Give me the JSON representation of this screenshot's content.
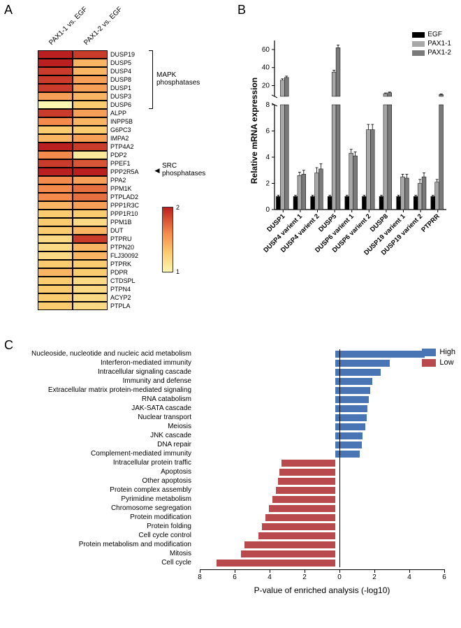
{
  "panelA": {
    "label": "A",
    "headers": [
      "PAX1-1 vs. EGF",
      "PAX1-2 vs. EGF"
    ],
    "genes": [
      "DUSP19",
      "DUSP5",
      "DUSP4",
      "DUSP8",
      "DUSP1",
      "DUSP3",
      "DUSP6",
      "ALPP",
      "INPP5B",
      "G6PC3",
      "IMPA2",
      "PTP4A2",
      "PDP2",
      "PPEF1",
      "PPP2R5A",
      "PPA2",
      "PPM1K",
      "PTPLAD2",
      "PPP1R3C",
      "PPP1R10",
      "PPM1B",
      "DUT",
      "PTPRU",
      "PTPN20",
      "FLJ30092",
      "PTPRK",
      "PDPR",
      "CTDSPL",
      "PTPN4",
      "ACYP2",
      "PTPLA"
    ],
    "values": [
      [
        2.0,
        1.9
      ],
      [
        2.0,
        1.4
      ],
      [
        1.9,
        1.4
      ],
      [
        1.9,
        1.5
      ],
      [
        1.9,
        1.5
      ],
      [
        1.5,
        1.4
      ],
      [
        1.0,
        1.3
      ],
      [
        1.9,
        1.5
      ],
      [
        1.6,
        1.4
      ],
      [
        1.3,
        1.3
      ],
      [
        1.4,
        1.5
      ],
      [
        2.0,
        1.9
      ],
      [
        1.6,
        1.1
      ],
      [
        1.9,
        1.8
      ],
      [
        2.0,
        2.0
      ],
      [
        1.6,
        1.5
      ],
      [
        1.6,
        1.7
      ],
      [
        1.6,
        1.7
      ],
      [
        1.4,
        1.5
      ],
      [
        1.3,
        1.3
      ],
      [
        1.3,
        1.2
      ],
      [
        1.3,
        1.4
      ],
      [
        1.2,
        1.9
      ],
      [
        1.2,
        1.4
      ],
      [
        1.2,
        1.4
      ],
      [
        1.3,
        1.3
      ],
      [
        1.4,
        1.3
      ],
      [
        1.3,
        1.2
      ],
      [
        1.3,
        1.2
      ],
      [
        1.3,
        1.2
      ],
      [
        1.3,
        1.2
      ]
    ],
    "bracket_mapk": {
      "start": 0,
      "end": 6,
      "label": "MAPK\nphosphatases"
    },
    "arrow_src": {
      "row": 14,
      "label": "SRC\nphosphatases"
    },
    "colorbar": {
      "min": 1.0,
      "max": 2.0,
      "stops": [
        {
          "v": 1.0,
          "c": "#fcf5b0"
        },
        {
          "v": 1.3,
          "c": "#fbcb6f"
        },
        {
          "v": 1.6,
          "c": "#f48a4b"
        },
        {
          "v": 2.0,
          "c": "#bb2020"
        }
      ]
    }
  },
  "panelB": {
    "label": "B",
    "ylabel": "Relative mRNA expression",
    "series": [
      {
        "name": "EGF",
        "color": "#000000"
      },
      {
        "name": "PAX1-1",
        "color": "#a7a7a7"
      },
      {
        "name": "PAX1-2",
        "color": "#7a7a7a"
      }
    ],
    "categories": [
      "DUSP1",
      "DUSP4 varient 1",
      "DUSP4 varient 2",
      "DUSP5",
      "DUSP6 varient 1",
      "DUSP6 varient 2",
      "DUSP8",
      "DUSP19 varient 1",
      "DUSP19 varient 2",
      "PTPRR"
    ],
    "yaxis_lower": {
      "min": 0,
      "max": 8,
      "ticks": [
        0,
        2,
        4,
        6,
        8
      ]
    },
    "yaxis_upper": {
      "min": 8,
      "max": 70,
      "ticks": [
        20,
        40,
        60
      ]
    },
    "data": {
      "EGF": [
        1,
        1,
        1,
        1,
        1,
        1,
        1,
        1,
        1,
        1
      ],
      "PAX1-1": [
        26,
        2.6,
        2.8,
        35,
        4.3,
        6.1,
        11,
        2.5,
        2.0,
        2.1
      ],
      "PAX1-2": [
        29,
        2.7,
        3.1,
        62,
        4.1,
        6.1,
        12,
        2.4,
        2.5,
        10
      ]
    },
    "err": {
      "EGF": [
        0.1,
        0.1,
        0.1,
        0.1,
        0.1,
        0.1,
        0.1,
        0.1,
        0.1,
        0.1
      ],
      "PAX1-1": [
        1.5,
        0.25,
        0.4,
        2,
        0.3,
        0.4,
        0.8,
        0.2,
        0.3,
        0.2
      ],
      "PAX1-2": [
        1.5,
        0.3,
        0.4,
        3,
        0.3,
        0.4,
        0.8,
        0.3,
        0.3,
        0.8
      ]
    }
  },
  "panelC": {
    "label": "C",
    "xlabel": "P-value of enriched analysis (-log10)",
    "xlim": [
      -8,
      6
    ],
    "xticks": [
      8,
      6,
      4,
      2,
      0,
      2,
      4,
      6
    ],
    "series": [
      {
        "name": "High",
        "color": "#4a75b5"
      },
      {
        "name": "Low",
        "color": "#b84a4d"
      }
    ],
    "rows": [
      {
        "label": "Nucleoside, nucleotide and nucleic acid metabolism",
        "high": 5.1,
        "low": 0
      },
      {
        "label": "Interferon-mediated immunity",
        "high": 3.1,
        "low": 0
      },
      {
        "label": "Intracellular signaling cascade",
        "high": 2.6,
        "low": 0
      },
      {
        "label": "Immunity and defense",
        "high": 2.1,
        "low": 0
      },
      {
        "label": "Extracellular matrix protein-mediated signaling",
        "high": 2.0,
        "low": 0
      },
      {
        "label": "RNA catabolism",
        "high": 1.9,
        "low": 0
      },
      {
        "label": "JAK-SATA cascade",
        "high": 1.85,
        "low": 0
      },
      {
        "label": "Nuclear transport",
        "high": 1.8,
        "low": 0
      },
      {
        "label": "Meiosis",
        "high": 1.7,
        "low": 0
      },
      {
        "label": "JNK cascade",
        "high": 1.55,
        "low": 0
      },
      {
        "label": "DNA repair",
        "high": 1.5,
        "low": 0
      },
      {
        "label": "Complement-mediated immunity",
        "high": 1.4,
        "low": 0
      },
      {
        "label": "Intracellular protein traffic",
        "high": 0,
        "low": 3.1
      },
      {
        "label": "Apoptosis",
        "high": 0,
        "low": 3.2
      },
      {
        "label": "Other apoptosis",
        "high": 0,
        "low": 3.3
      },
      {
        "label": "Protein complex assembly",
        "high": 0,
        "low": 3.4
      },
      {
        "label": "Pyrimidine metabolism",
        "high": 0,
        "low": 3.6
      },
      {
        "label": "Chromosome segregation",
        "high": 0,
        "low": 3.8
      },
      {
        "label": "Protein modification",
        "high": 0,
        "low": 4.0
      },
      {
        "label": "Protein folding",
        "high": 0,
        "low": 4.2
      },
      {
        "label": "Cell cycle control",
        "high": 0,
        "low": 4.4
      },
      {
        "label": "Protein metabolism and modification",
        "high": 0,
        "low": 5.2
      },
      {
        "label": "Mitosis",
        "high": 0,
        "low": 5.4
      },
      {
        "label": "Cell cycle",
        "high": 0,
        "low": 6.8
      }
    ]
  }
}
